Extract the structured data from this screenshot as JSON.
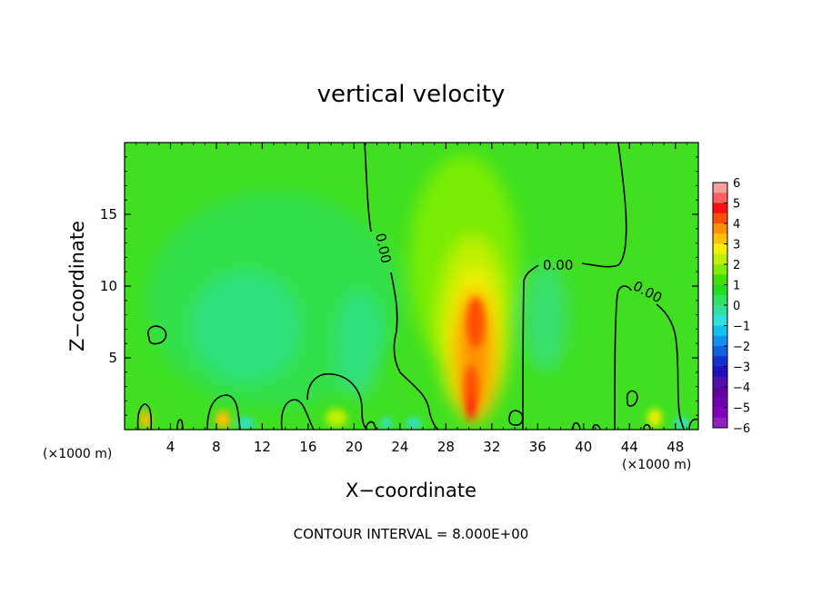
{
  "chart_data": {
    "type": "heatmap",
    "title": "vertical velocity",
    "xlabel": "X−coordinate",
    "ylabel": "Z−coordinate",
    "x_unit_left": "(×1000 m)",
    "x_unit_right": "(×1000 m)",
    "xlim": [
      0,
      50
    ],
    "ylim": [
      0,
      20
    ],
    "xticks": [
      4,
      8,
      12,
      16,
      20,
      24,
      28,
      32,
      36,
      40,
      44,
      48
    ],
    "yticks": [
      5,
      10,
      15
    ],
    "colorbar": {
      "range": [
        -6,
        6
      ],
      "ticks": [
        6,
        5,
        4,
        3,
        2,
        1,
        0,
        -1,
        -2,
        -3,
        -4,
        -5,
        -6
      ],
      "tick_labels": [
        "6",
        "5",
        "4",
        "3",
        "2",
        "1",
        "0",
        "−1",
        "−2",
        "−3",
        "−4",
        "−5",
        "−6"
      ],
      "colors": [
        "#f5a0a0",
        "#ff6060",
        "#ff1010",
        "#ff5000",
        "#ff9000",
        "#ffc000",
        "#f0f000",
        "#c0f000",
        "#80ee00",
        "#40e000",
        "#20dd20",
        "#30e060",
        "#30e0a0",
        "#30e0e0",
        "#10c0f0",
        "#1090f0",
        "#1060e0",
        "#1030d0",
        "#2010c0",
        "#5010b0",
        "#6000a0",
        "#7000b0",
        "#8000c0",
        "#9020c0"
      ]
    },
    "contour_labels": [
      "0.00",
      "0.00",
      "0.00"
    ],
    "footer": "CONTOUR INTERVAL = 8.000E+00"
  }
}
